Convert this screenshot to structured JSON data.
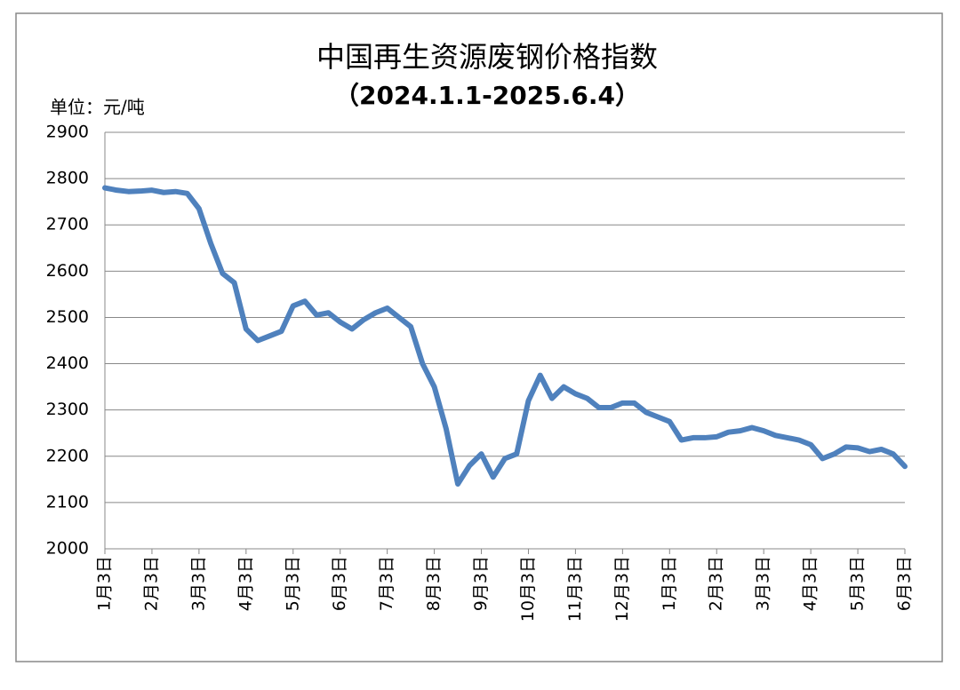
{
  "chart_data": {
    "type": "line",
    "title": "中国再生资源废钢价格指数",
    "subtitle": "（2024.1.1-2025.6.4）",
    "y_label": "单位：元/吨",
    "categories": [
      "1月3日",
      null,
      null,
      null,
      "2月3日",
      null,
      null,
      null,
      "3月3日",
      null,
      null,
      null,
      "4月3日",
      null,
      null,
      null,
      "5月3日",
      null,
      null,
      null,
      "6月3日",
      null,
      null,
      null,
      "7月3日",
      null,
      null,
      null,
      "8月3日",
      null,
      null,
      null,
      "9月3日",
      null,
      null,
      null,
      "10月3日",
      null,
      null,
      null,
      "11月3日",
      null,
      null,
      null,
      "12月3日",
      null,
      null,
      null,
      "1月3日",
      null,
      null,
      null,
      "2月3日",
      null,
      null,
      null,
      "3月3日",
      null,
      null,
      null,
      "4月3日",
      null,
      null,
      null,
      "5月3日",
      null,
      null,
      null,
      "6月3日"
    ],
    "series": [
      {
        "color": "#4f81bd",
        "values": [
          2780,
          2775,
          2772,
          2773,
          2775,
          2770,
          2772,
          2768,
          2735,
          2660,
          2595,
          2575,
          2475,
          2450,
          2460,
          2470,
          2525,
          2535,
          2505,
          2510,
          2490,
          2475,
          2495,
          2510,
          2520,
          2500,
          2480,
          2400,
          2350,
          2260,
          2140,
          2180,
          2205,
          2155,
          2195,
          2205,
          2320,
          2375,
          2325,
          2350,
          2335,
          2325,
          2305,
          2305,
          2315,
          2315,
          2295,
          2285,
          2275,
          2235,
          2240,
          2240,
          2242,
          2252,
          2255,
          2262,
          2255,
          2245,
          2240,
          2235,
          2225,
          2195,
          2205,
          2220,
          2218,
          2210,
          2215,
          2205,
          2178
        ]
      }
    ],
    "ylim": [
      2000,
      2900
    ],
    "yticks": [
      2000,
      2100,
      2200,
      2300,
      2400,
      2500,
      2600,
      2700,
      2800,
      2900
    ],
    "grid": true
  }
}
